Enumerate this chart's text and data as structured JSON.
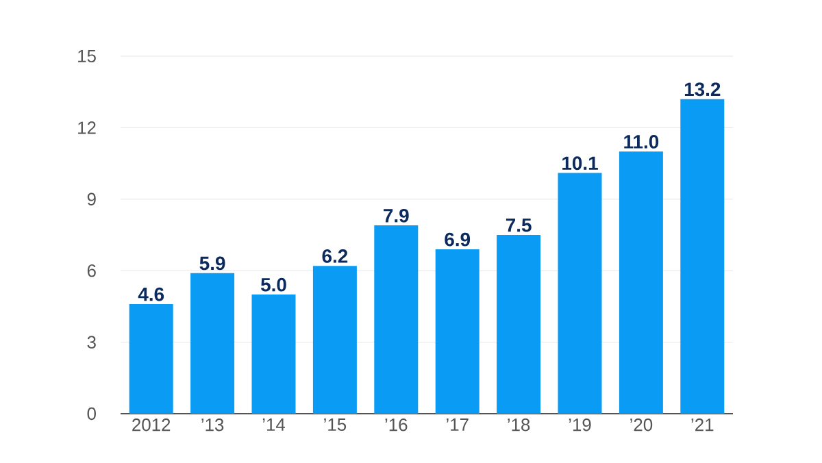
{
  "chart_data": {
    "type": "bar",
    "categories": [
      "2012",
      "’13",
      "’14",
      "’15",
      "’16",
      "’17",
      "’18",
      "’19",
      "’20",
      "’21"
    ],
    "values": [
      4.6,
      5.9,
      5.0,
      6.2,
      7.9,
      6.9,
      7.5,
      10.1,
      11.0,
      13.2
    ],
    "value_labels": [
      "4.6",
      "5.9",
      "5.0",
      "6.2",
      "7.9",
      "6.9",
      "7.5",
      "10.1",
      "11.0",
      "13.2"
    ],
    "color": "#0a9cf5",
    "ylim": [
      0,
      15
    ],
    "yticks": [
      0,
      3,
      6,
      9,
      12,
      15
    ],
    "grid": "y"
  }
}
